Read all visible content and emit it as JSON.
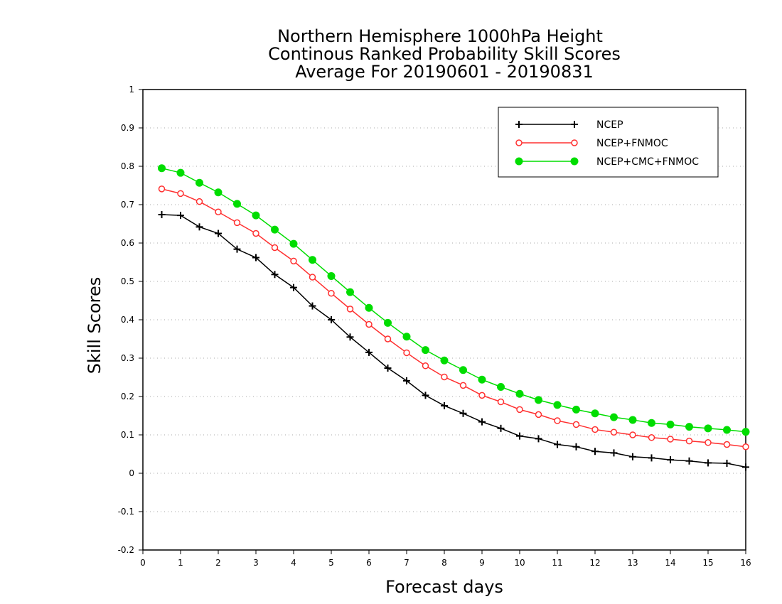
{
  "chart_data": {
    "type": "line",
    "title": [
      "Northern Hemisphere 1000hPa Height",
      "Continous Ranked Probability Skill Scores",
      "Average For 20190601 - 20190831"
    ],
    "xlabel": "Forecast days",
    "ylabel": "Skill Scores",
    "xlim": [
      0,
      16
    ],
    "ylim": [
      -0.2,
      1
    ],
    "xticks": [
      0,
      1,
      2,
      3,
      4,
      5,
      6,
      7,
      8,
      9,
      10,
      11,
      12,
      13,
      14,
      15,
      16
    ],
    "yticks": [
      -0.2,
      -0.1,
      0,
      0.1,
      0.2,
      0.3,
      0.4,
      0.5,
      0.6,
      0.7,
      0.8,
      0.9,
      1
    ],
    "ytick_labels": [
      "-0.2",
      "-0.1",
      "0",
      "0.1",
      "0.2",
      "0.3",
      "0.4",
      "0.5",
      "0.6",
      "0.7",
      "0.8",
      "0.9",
      "1"
    ],
    "grid": "horizontal dotted",
    "legend_position": "top-right",
    "x": [
      0.5,
      1,
      1.5,
      2,
      2.5,
      3,
      3.5,
      4,
      4.5,
      5,
      5.5,
      6,
      6.5,
      7,
      7.5,
      8,
      8.5,
      9,
      9.5,
      10,
      10.5,
      11,
      11.5,
      12,
      12.5,
      13,
      13.5,
      14,
      14.5,
      15,
      15.5,
      16
    ],
    "series": [
      {
        "name": "NCEP",
        "color": "#000000",
        "marker": "plus",
        "values": [
          0.674,
          0.672,
          0.642,
          0.625,
          0.584,
          0.562,
          0.518,
          0.484,
          0.436,
          0.4,
          0.355,
          0.315,
          0.274,
          0.241,
          0.203,
          0.176,
          0.156,
          0.134,
          0.117,
          0.097,
          0.09,
          0.075,
          0.069,
          0.057,
          0.053,
          0.043,
          0.04,
          0.035,
          0.032,
          0.027,
          0.026,
          0.016
        ]
      },
      {
        "name": "NCEP+FNMOC",
        "color": "#ff3030",
        "marker": "open-circle",
        "values": [
          0.741,
          0.729,
          0.708,
          0.681,
          0.653,
          0.625,
          0.588,
          0.553,
          0.511,
          0.469,
          0.428,
          0.388,
          0.35,
          0.314,
          0.28,
          0.251,
          0.229,
          0.203,
          0.186,
          0.166,
          0.153,
          0.137,
          0.127,
          0.114,
          0.107,
          0.1,
          0.093,
          0.089,
          0.084,
          0.08,
          0.075,
          0.069
        ]
      },
      {
        "name": "NCEP+CMC+FNMOC",
        "color": "#00dd00",
        "marker": "filled-circle",
        "values": [
          0.795,
          0.783,
          0.757,
          0.732,
          0.702,
          0.672,
          0.635,
          0.598,
          0.556,
          0.514,
          0.472,
          0.431,
          0.392,
          0.356,
          0.321,
          0.294,
          0.269,
          0.244,
          0.225,
          0.207,
          0.191,
          0.178,
          0.166,
          0.156,
          0.146,
          0.139,
          0.131,
          0.127,
          0.121,
          0.117,
          0.113,
          0.108
        ]
      }
    ]
  }
}
